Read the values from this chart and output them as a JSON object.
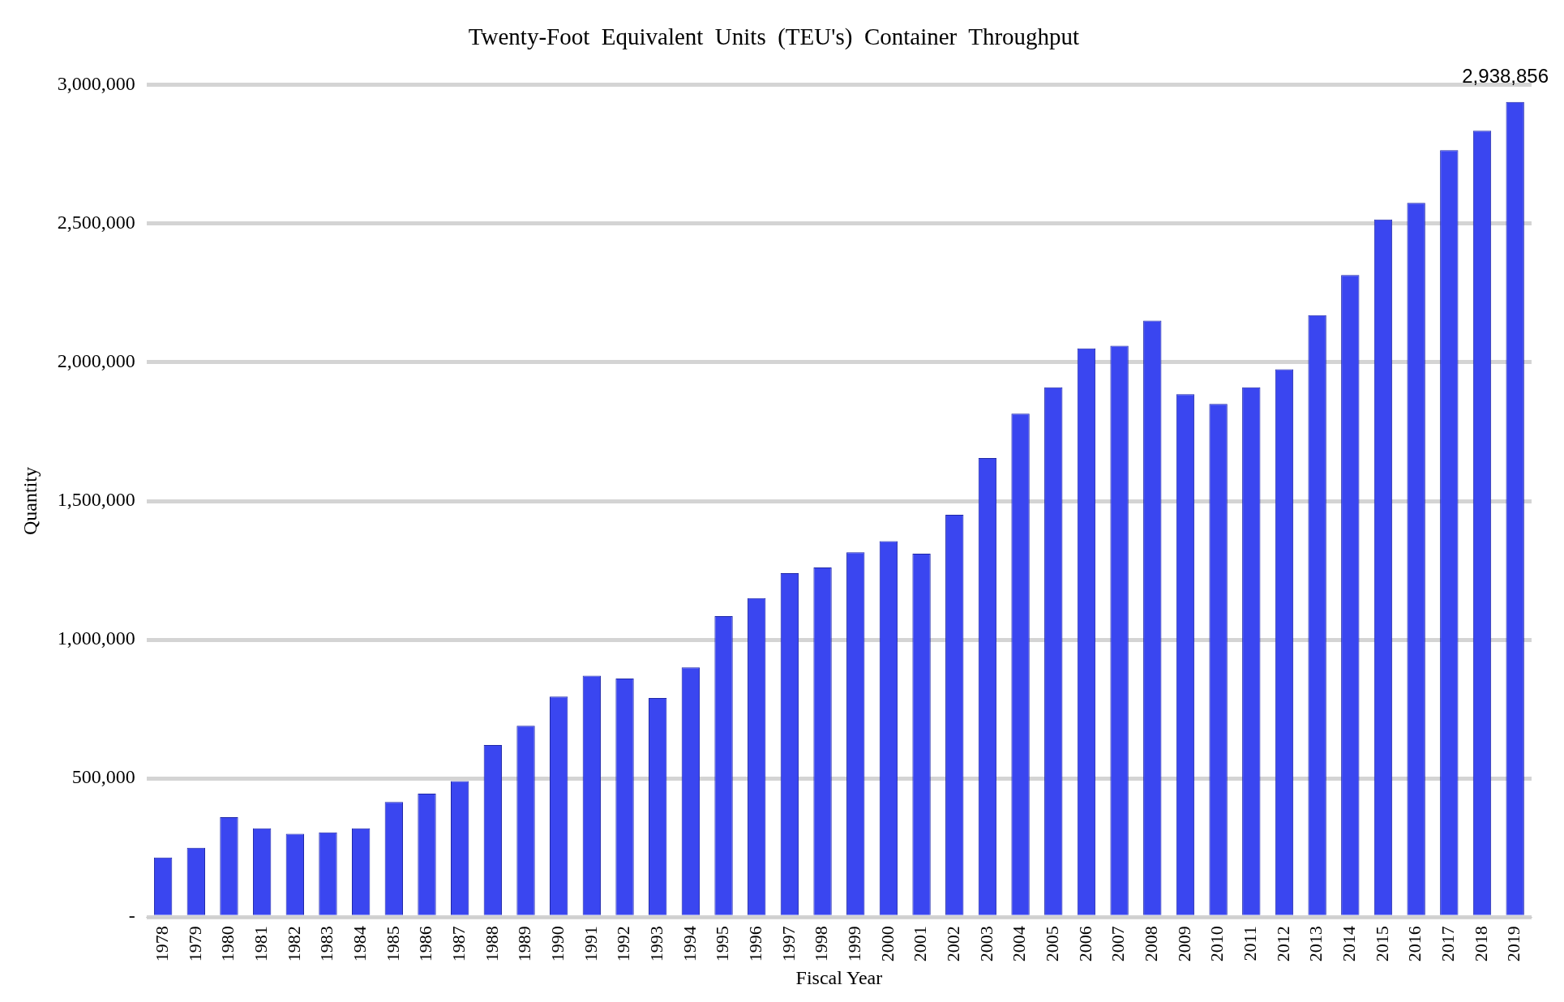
{
  "chart_data": {
    "type": "bar",
    "title": "Twenty-Foot  Equivalent  Units  (TEU's)  Container  Throughput",
    "xlabel": "Fiscal Year",
    "ylabel": "Quantity",
    "categories": [
      "1978",
      "1979",
      "1980",
      "1981",
      "1982",
      "1983",
      "1984",
      "1985",
      "1986",
      "1987",
      "1988",
      "1989",
      "1990",
      "1991",
      "1992",
      "1993",
      "1994",
      "1995",
      "1996",
      "1997",
      "1998",
      "1999",
      "2000",
      "2001",
      "2002",
      "2003",
      "2004",
      "2005",
      "2006",
      "2007",
      "2008",
      "2009",
      "2010",
      "2011",
      "2012",
      "2013",
      "2014",
      "2015",
      "2016",
      "2017",
      "2018",
      "2019"
    ],
    "values": [
      215000,
      250000,
      360000,
      320000,
      300000,
      305000,
      320000,
      415000,
      445000,
      490000,
      620000,
      690000,
      795000,
      870000,
      860000,
      790000,
      900000,
      1085000,
      1150000,
      1240000,
      1260000,
      1315000,
      1355000,
      1310000,
      1450000,
      1655000,
      1815000,
      1910000,
      2050000,
      2060000,
      2150000,
      1885000,
      1850000,
      1910000,
      1975000,
      2170000,
      2315000,
      2515000,
      2575000,
      2765000,
      2835000,
      2938856
    ],
    "value_labels": [
      null,
      null,
      null,
      null,
      null,
      null,
      null,
      null,
      null,
      null,
      null,
      null,
      null,
      null,
      null,
      null,
      null,
      null,
      null,
      null,
      null,
      null,
      null,
      null,
      null,
      null,
      null,
      null,
      null,
      null,
      null,
      null,
      null,
      null,
      null,
      null,
      null,
      null,
      null,
      null,
      null,
      "2,938,856"
    ],
    "color": "#3a46f0",
    "ylim": [
      0,
      3000000
    ],
    "yticks": [
      {
        "value": 0,
        "label": "-"
      },
      {
        "value": 500000,
        "label": "500,000"
      },
      {
        "value": 1000000,
        "label": "1,000,000"
      },
      {
        "value": 1500000,
        "label": "1,500,000"
      },
      {
        "value": 2000000,
        "label": "2,000,000"
      },
      {
        "value": 2500000,
        "label": "2,500,000"
      },
      {
        "value": 3000000,
        "label": "3,000,000"
      }
    ],
    "grid": "y",
    "legend": false
  }
}
